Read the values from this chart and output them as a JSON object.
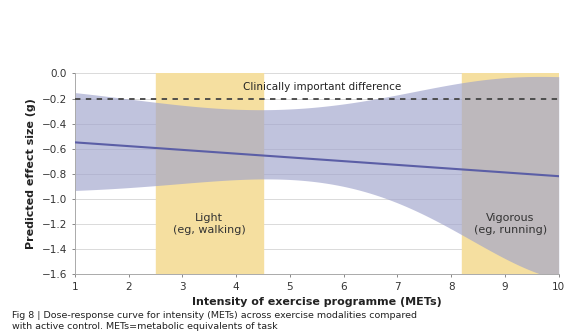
{
  "x_min": 1,
  "x_max": 10,
  "y_min": -1.6,
  "y_max": 0,
  "x_ticks": [
    1,
    2,
    3,
    4,
    5,
    6,
    7,
    8,
    9,
    10
  ],
  "y_ticks": [
    0,
    -0.2,
    -0.4,
    -0.6,
    -0.8,
    -1.0,
    -1.2,
    -1.4,
    -1.6
  ],
  "xlabel": "Intensity of exercise programme (METs)",
  "ylabel": "Predicted effect size (g)",
  "clinically_important_y": -0.2,
  "clinically_label": "Clinically important difference",
  "line_color": "#5b5ea6",
  "ci_color": "#9fa3cc",
  "ci_alpha": 0.65,
  "orange_color": "#f5dfa0",
  "orange_alpha": 1.0,
  "light_label": "Light\n(eg, walking)",
  "light_x_start": 2.5,
  "light_x_end": 4.5,
  "vigorous_label": "Vigorous\n(eg, running)",
  "vigorous_x_start": 8.2,
  "vigorous_x_end": 10.0,
  "caption": "Fig 8 | Dose-response curve for intensity (METs) across exercise modalities compared\nwith active control. METs=metabolic equivalents of task"
}
